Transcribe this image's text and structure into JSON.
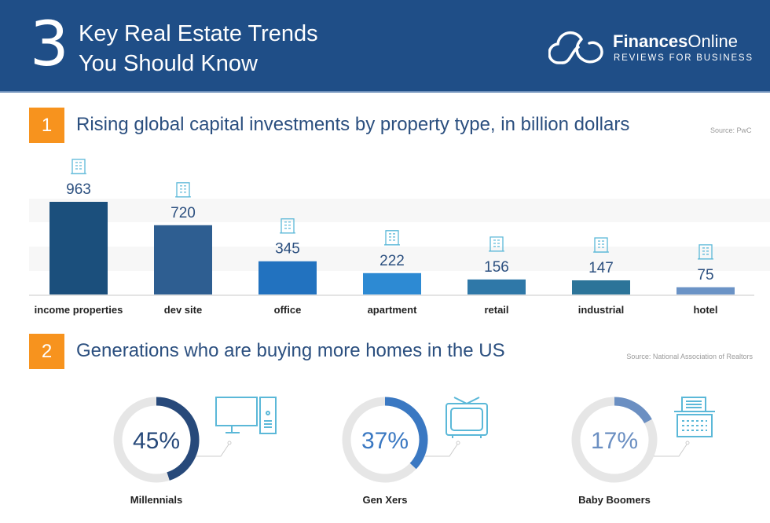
{
  "header": {
    "number": "3",
    "title_line1": "Key Real Estate Trends",
    "title_line2": "You Should Know",
    "brand_bold": "Finances",
    "brand_light": "Online",
    "tagline": "REVIEWS FOR BUSINESS"
  },
  "section1": {
    "number": "1",
    "title": "Rising global capital investments by property type, in billion dollars",
    "source": "Source: PwC"
  },
  "section2": {
    "number": "2",
    "title": "Generations who are buying more homes in the US",
    "source": "Source: National Association of Realtors"
  },
  "chart_data": [
    {
      "type": "bar",
      "categories": [
        "income properties",
        "dev site",
        "office",
        "apartment",
        "retail",
        "industrial",
        "hotel"
      ],
      "values": [
        963,
        720,
        345,
        222,
        156,
        147,
        75
      ],
      "icons": [
        "money-hand-icon",
        "development-site-icon",
        "office-building-icon",
        "apartment-building-icon",
        "retail-house-icon",
        "factory-icon",
        "hotel-tower-icon"
      ],
      "colors": [
        "#1b4f7c",
        "#2e5e91",
        "#2272bf",
        "#2d8ad3",
        "#2f78a8",
        "#2c7499",
        "#6b93c6"
      ],
      "ylabel": "billion dollars",
      "grid": false
    },
    {
      "type": "pie",
      "categories": [
        "Millennials",
        "Gen Xers",
        "Baby Boomers"
      ],
      "values": [
        45,
        37,
        17
      ],
      "labels": [
        "45%",
        "37%",
        "17%"
      ],
      "icons": [
        "desktop-computer-icon",
        "television-icon",
        "typewriter-icon"
      ],
      "colors": [
        "#27497a",
        "#3a78c2",
        "#6b8fc2"
      ],
      "track_color": "#e6e6e6"
    }
  ]
}
